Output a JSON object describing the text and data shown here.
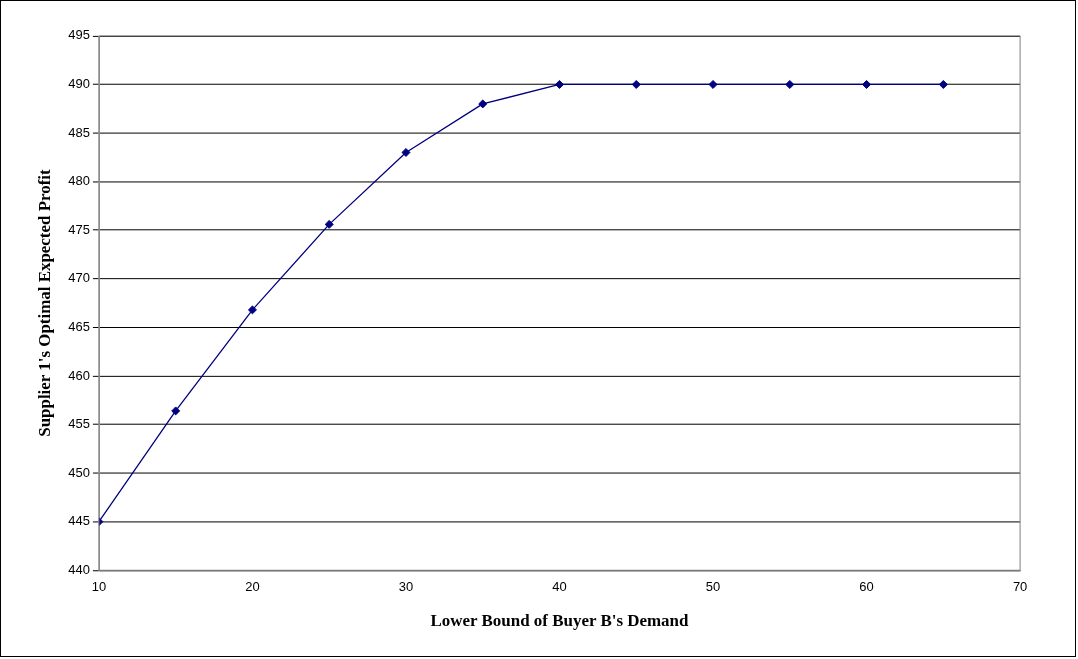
{
  "chart_data": {
    "type": "line",
    "xlabel": "Lower Bound of Buyer B's Demand",
    "ylabel": "Supplier 1's Optimal Expected Profit",
    "x": [
      10,
      15,
      20,
      25,
      30,
      35,
      40,
      45,
      50,
      55,
      60,
      65
    ],
    "series": [
      {
        "color": "#000080",
        "values": [
          445,
          456.4,
          466.8,
          475.6,
          483,
          488,
          490,
          490,
          490,
          490,
          490,
          490
        ]
      }
    ],
    "xlim": [
      10,
      70
    ],
    "xticks": [
      10,
      20,
      30,
      40,
      50,
      60,
      70
    ],
    "ylim": [
      440,
      495
    ],
    "yticks": [
      440,
      445,
      450,
      455,
      460,
      465,
      470,
      475,
      480,
      485,
      490,
      495
    ],
    "grid": "y",
    "legend": false,
    "marker": "diamond",
    "line_style": "solid"
  }
}
